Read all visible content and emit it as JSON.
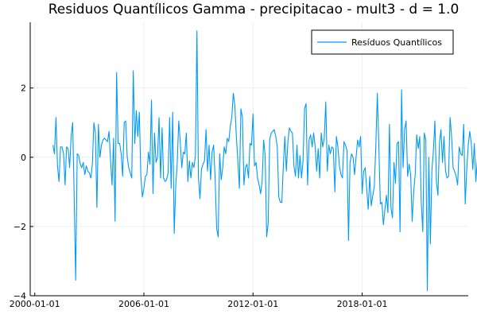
{
  "chart_data": {
    "type": "line",
    "title": "Residuos Quantílicos Gamma - precipitacao - mult3 - d = 1.0",
    "xlabel": "",
    "ylabel": "",
    "x_start": "2001-01-01",
    "x_step": "month",
    "x_ticks": [
      "2000-01-01",
      "2006-01-01",
      "2012-01-01",
      "2018-01-01"
    ],
    "y_ticks": [
      -4,
      -2,
      0,
      2
    ],
    "xlim": [
      "1999-10-01",
      "2023-11-01"
    ],
    "ylim": [
      -4.0,
      3.9
    ],
    "grid": true,
    "legend_position": "top-right",
    "series_color": "#009af9",
    "series": [
      {
        "name": "Resíduos Quantílicos",
        "values": [
          0.35,
          0.1,
          1.15,
          -0.25,
          -0.7,
          0.3,
          0.3,
          0.1,
          -0.8,
          0.3,
          0.25,
          -0.3,
          0.6,
          1.0,
          -1.1,
          -3.55,
          0.1,
          0.05,
          -0.2,
          -0.3,
          -0.15,
          -0.5,
          -0.25,
          -0.4,
          -0.45,
          -0.6,
          -0.2,
          1.0,
          0.7,
          -1.45,
          0.95,
          0.0,
          0.35,
          0.5,
          0.55,
          0.5,
          0.45,
          0.75,
          -0.1,
          -0.8,
          0.55,
          -1.85,
          2.45,
          0.4,
          0.4,
          0.1,
          -0.55,
          1.0,
          1.05,
          0.0,
          -0.3,
          -0.45,
          -0.6,
          2.5,
          0.4,
          1.35,
          0.6,
          1.3,
          -0.55,
          -1.15,
          -0.9,
          -0.55,
          -0.5,
          0.15,
          -0.2,
          1.65,
          -1.05,
          0.7,
          -0.15,
          0.0,
          1.15,
          -0.6,
          0.85,
          -0.6,
          -0.7,
          -0.65,
          -0.45,
          1.15,
          -0.9,
          1.3,
          -2.2,
          -0.85,
          -0.15,
          1.05,
          0.45,
          -0.3,
          0.15,
          0.1,
          0.7,
          -0.7,
          -0.1,
          -0.6,
          -0.15,
          -0.3,
          0.05,
          3.65,
          -0.6,
          -1.2,
          -0.35,
          -0.2,
          -0.1,
          0.8,
          -0.4,
          0.35,
          -0.65,
          0.15,
          0.35,
          -0.6,
          -2.05,
          -2.3,
          0.1,
          -0.65,
          -0.3,
          0.3,
          0.1,
          0.55,
          0.45,
          0.9,
          1.15,
          1.85,
          1.5,
          0.6,
          -0.1,
          -0.9,
          1.4,
          1.15,
          -0.8,
          -0.3,
          -0.2,
          -0.6,
          0.4,
          0.35,
          1.25,
          -0.25,
          -0.15,
          -0.6,
          -0.8,
          -1.05,
          -0.7,
          0.5,
          0.05,
          -2.3,
          -1.9,
          0.5,
          0.7,
          0.75,
          0.8,
          0.6,
          0.3,
          -1.15,
          -1.3,
          -1.3,
          -0.25,
          0.6,
          -0.4,
          0.45,
          0.85,
          0.75,
          0.7,
          -0.25,
          -0.55,
          0.35,
          -0.6,
          0.05,
          -0.6,
          -0.1,
          1.4,
          1.55,
          -0.8,
          0.5,
          0.65,
          0.3,
          0.7,
          0.3,
          -0.4,
          0.25,
          -0.6,
          0.7,
          0.3,
          0.55,
          1.6,
          -0.4,
          0.35,
          0.1,
          0.3,
          0.25,
          -1.0,
          0.6,
          0.3,
          -0.25,
          -0.5,
          -0.6,
          0.45,
          0.35,
          0.2,
          -2.4,
          -0.15,
          0.1,
          0.0,
          -0.5,
          0.0,
          0.5,
          0.3,
          0.6,
          -1.05,
          -0.4,
          -0.3,
          -0.9,
          -1.5,
          -0.55,
          -1.4,
          -1.1,
          -0.85,
          0.3,
          1.85,
          0.35,
          -1.35,
          -1.3,
          -1.95,
          -1.5,
          -1.1,
          -1.6,
          0.95,
          -1.45,
          -1.75,
          -0.15,
          -0.75,
          0.4,
          0.45,
          -2.15,
          1.95,
          -0.3,
          0.8,
          1.05,
          -0.55,
          -0.2,
          -0.5,
          -1.85,
          -1.0,
          -0.5,
          0.65,
          0.25,
          0.6,
          -1.3,
          -2.15,
          0.7,
          0.5,
          -3.85,
          0.0,
          -2.5,
          -0.4,
          0.2,
          1.05,
          -0.7,
          -1.1,
          0.4,
          0.8,
          -0.15,
          0.6,
          -0.4,
          -0.6,
          -0.55,
          1.15,
          0.6,
          -0.3,
          -0.4,
          -0.55,
          -0.8,
          0.3,
          0.1,
          0.05,
          0.95,
          -1.35,
          -0.35,
          0.35,
          0.75,
          0.4,
          -0.35,
          0.4,
          -0.7,
          -0.05,
          1.05,
          0.9,
          -2.25,
          -1.95,
          -1.4,
          -0.4,
          -0.35,
          0.95,
          -0.5,
          -0.2,
          -1.05,
          0.0,
          0.9,
          0.2,
          0.75,
          0.6,
          0.35,
          0.15,
          0.45,
          -1.2,
          -1.15,
          -1.95,
          -1.35,
          1.2,
          0.25
        ]
      }
    ]
  }
}
